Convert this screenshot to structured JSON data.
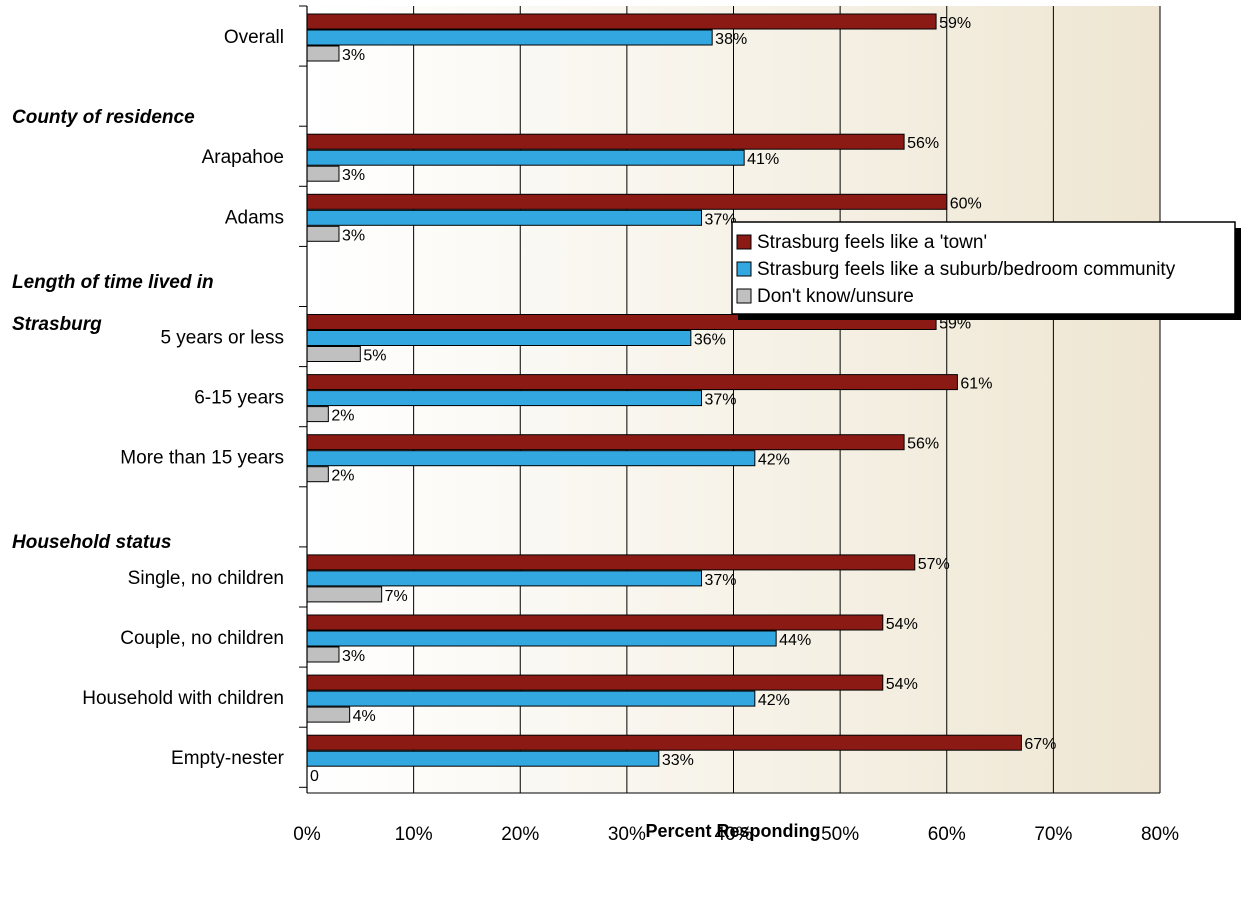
{
  "chart_data": {
    "type": "bar",
    "orientation": "horizontal",
    "xlabel": "Percent Responding",
    "xlim": [
      0,
      80
    ],
    "x_ticks": [
      "0%",
      "10%",
      "20%",
      "30%",
      "40%",
      "50%",
      "60%",
      "70%",
      "80%"
    ],
    "grid": "vertical",
    "legend_position": "right",
    "series": [
      {
        "name": "Strasburg feels like a 'town'",
        "color": "#8b1a14"
      },
      {
        "name": "Strasburg feels like a suburb/bedroom community",
        "color": "#33a7e0"
      },
      {
        "name": "Don't know/unsure",
        "color": "#c0c0c0"
      }
    ],
    "sections": [
      {
        "label": "County of residence"
      },
      {
        "label": "Length of time lived in",
        "label2": "Strasburg"
      },
      {
        "label": "Household status"
      }
    ],
    "rows": [
      {
        "category": "Overall",
        "values": [
          59,
          38,
          3
        ],
        "labels": [
          "59%",
          "38%",
          "3%"
        ]
      },
      {
        "category": "Arapahoe",
        "values": [
          56,
          41,
          3
        ],
        "labels": [
          "56%",
          "41%",
          "3%"
        ]
      },
      {
        "category": "Adams",
        "values": [
          60,
          37,
          3
        ],
        "labels": [
          "60%",
          "37%",
          "3%"
        ]
      },
      {
        "category": "5 years or less",
        "values": [
          59,
          36,
          5
        ],
        "labels": [
          "59%",
          "36%",
          "5%"
        ]
      },
      {
        "category": "6-15 years",
        "values": [
          61,
          37,
          2
        ],
        "labels": [
          "61%",
          "37%",
          "2%"
        ]
      },
      {
        "category": "More than 15 years",
        "values": [
          56,
          42,
          2
        ],
        "labels": [
          "56%",
          "42%",
          "2%"
        ]
      },
      {
        "category": "Single, no children",
        "values": [
          57,
          37,
          7
        ],
        "labels": [
          "57%",
          "37%",
          "7%"
        ]
      },
      {
        "category": "Couple, no children",
        "values": [
          54,
          44,
          3
        ],
        "labels": [
          "54%",
          "44%",
          "3%"
        ]
      },
      {
        "category": "Household with children",
        "values": [
          54,
          42,
          4
        ],
        "labels": [
          "54%",
          "42%",
          "4%"
        ]
      },
      {
        "category": "Empty-nester",
        "values": [
          67,
          33,
          0
        ],
        "labels": [
          "67%",
          "33%",
          "0"
        ]
      }
    ]
  }
}
